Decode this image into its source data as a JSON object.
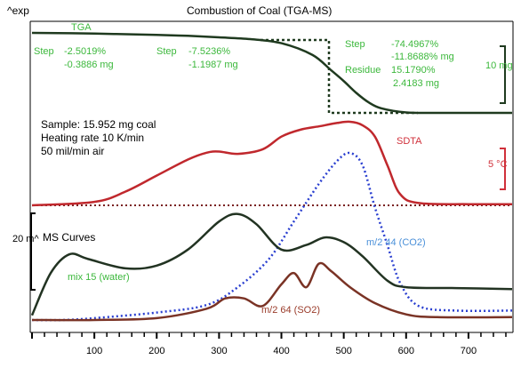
{
  "colors": {
    "tga": "#1f3a1f",
    "sdta": "#c0282d",
    "sdta_dotted": "#7a2020",
    "co2": "#2a3fd0",
    "water": "#223322",
    "so2": "#7a3325",
    "text_green": "#3cb83c",
    "text_red": "#d0303a",
    "text_blue": "#4a90d9",
    "text_brown": "#9a3b2a",
    "axis": "#000000"
  },
  "chart_data": {
    "type": "line",
    "title": "Combustion of Coal (TGA-MS)",
    "y_unit_label": "^exp",
    "xlabel": "",
    "ylabel": "",
    "xlim": [
      0,
      770
    ],
    "x_ticks": [
      100,
      200,
      300,
      400,
      500,
      600,
      700
    ],
    "grid": false,
    "panels": {
      "tga": {
        "label": "TGA",
        "scale_label": "10 mg",
        "steps": [
          {
            "label": "Step",
            "percent": "-2.5019%",
            "mass": "-0.3886 mg"
          },
          {
            "label": "Step",
            "percent": "-7.5236%",
            "mass": "-1.1987 mg"
          },
          {
            "label": "Step",
            "percent": "-74.4967%",
            "mass": "-11.8688% mg"
          }
        ],
        "residue": {
          "label": "Residue",
          "percent": "15.1790%",
          "mass": "2.4183 mg"
        },
        "series": [
          {
            "x": 0,
            "y": 15.95
          },
          {
            "x": 100,
            "y": 15.83
          },
          {
            "x": 200,
            "y": 15.6
          },
          {
            "x": 250,
            "y": 15.45
          },
          {
            "x": 300,
            "y": 15.2
          },
          {
            "x": 350,
            "y": 14.9
          },
          {
            "x": 400,
            "y": 14.2
          },
          {
            "x": 450,
            "y": 12.2
          },
          {
            "x": 480,
            "y": 9.6
          },
          {
            "x": 500,
            "y": 7.8
          },
          {
            "x": 520,
            "y": 5.8
          },
          {
            "x": 540,
            "y": 4.2
          },
          {
            "x": 560,
            "y": 3.2
          },
          {
            "x": 600,
            "y": 2.5
          },
          {
            "x": 650,
            "y": 2.42
          },
          {
            "x": 770,
            "y": 2.42
          }
        ]
      },
      "sdta": {
        "label": "SDTA",
        "scale_label": "5 °C",
        "series": [
          {
            "x": 0,
            "y": 0
          },
          {
            "x": 100,
            "y": 0.3
          },
          {
            "x": 150,
            "y": 1.2
          },
          {
            "x": 200,
            "y": 2.6
          },
          {
            "x": 250,
            "y": 4.0
          },
          {
            "x": 280,
            "y": 4.6
          },
          {
            "x": 300,
            "y": 4.7
          },
          {
            "x": 330,
            "y": 4.5
          },
          {
            "x": 370,
            "y": 4.9
          },
          {
            "x": 400,
            "y": 6.0
          },
          {
            "x": 430,
            "y": 6.6
          },
          {
            "x": 460,
            "y": 6.9
          },
          {
            "x": 490,
            "y": 7.2
          },
          {
            "x": 510,
            "y": 7.3
          },
          {
            "x": 530,
            "y": 7.0
          },
          {
            "x": 550,
            "y": 6.0
          },
          {
            "x": 570,
            "y": 3.5
          },
          {
            "x": 590,
            "y": 1.0
          },
          {
            "x": 620,
            "y": 0.2
          },
          {
            "x": 700,
            "y": 0.1
          },
          {
            "x": 770,
            "y": 0.1
          }
        ]
      },
      "ms": {
        "label": "MS Curves",
        "scale_label": "20 m^",
        "series": [
          {
            "name": "m/2 44 (CO2)",
            "values": [
              {
                "x": 0,
                "y": 0
              },
              {
                "x": 50,
                "y": 0
              },
              {
                "x": 100,
                "y": 0.2
              },
              {
                "x": 200,
                "y": 0.8
              },
              {
                "x": 280,
                "y": 1.6
              },
              {
                "x": 330,
                "y": 3.5
              },
              {
                "x": 380,
                "y": 6.5
              },
              {
                "x": 420,
                "y": 10.5
              },
              {
                "x": 460,
                "y": 14.5
              },
              {
                "x": 490,
                "y": 17.0
              },
              {
                "x": 510,
                "y": 17.8
              },
              {
                "x": 530,
                "y": 16.5
              },
              {
                "x": 550,
                "y": 12.0
              },
              {
                "x": 570,
                "y": 8.0
              },
              {
                "x": 590,
                "y": 4.0
              },
              {
                "x": 620,
                "y": 1.5
              },
              {
                "x": 680,
                "y": 1.0
              },
              {
                "x": 770,
                "y": 1.0
              }
            ]
          },
          {
            "name": "mix 15 (water)",
            "values": [
              {
                "x": 0,
                "y": 0.5
              },
              {
                "x": 30,
                "y": 5.0
              },
              {
                "x": 60,
                "y": 7.0
              },
              {
                "x": 90,
                "y": 6.5
              },
              {
                "x": 150,
                "y": 5.5
              },
              {
                "x": 200,
                "y": 5.8
              },
              {
                "x": 250,
                "y": 7.5
              },
              {
                "x": 300,
                "y": 10.5
              },
              {
                "x": 330,
                "y": 11.3
              },
              {
                "x": 360,
                "y": 10.2
              },
              {
                "x": 400,
                "y": 7.5
              },
              {
                "x": 440,
                "y": 8.0
              },
              {
                "x": 470,
                "y": 8.8
              },
              {
                "x": 500,
                "y": 8.3
              },
              {
                "x": 530,
                "y": 6.8
              },
              {
                "x": 570,
                "y": 4.2
              },
              {
                "x": 600,
                "y": 3.5
              },
              {
                "x": 680,
                "y": 3.4
              },
              {
                "x": 770,
                "y": 3.3
              }
            ]
          },
          {
            "name": "m/2 64 (SO2)",
            "values": [
              {
                "x": 0,
                "y": 0
              },
              {
                "x": 100,
                "y": 0
              },
              {
                "x": 200,
                "y": 0.2
              },
              {
                "x": 280,
                "y": 1.2
              },
              {
                "x": 310,
                "y": 2.3
              },
              {
                "x": 340,
                "y": 2.3
              },
              {
                "x": 370,
                "y": 1.5
              },
              {
                "x": 400,
                "y": 3.8
              },
              {
                "x": 420,
                "y": 5.0
              },
              {
                "x": 440,
                "y": 3.5
              },
              {
                "x": 460,
                "y": 6.0
              },
              {
                "x": 480,
                "y": 5.2
              },
              {
                "x": 510,
                "y": 3.5
              },
              {
                "x": 550,
                "y": 1.8
              },
              {
                "x": 600,
                "y": 0.6
              },
              {
                "x": 650,
                "y": 0.3
              },
              {
                "x": 770,
                "y": 0.3
              }
            ]
          }
        ]
      }
    }
  },
  "sample_info": {
    "line1": "Sample: 15.952 mg coal",
    "line2": "Heating rate 10 K/min",
    "line3": "50 mil/min air"
  }
}
